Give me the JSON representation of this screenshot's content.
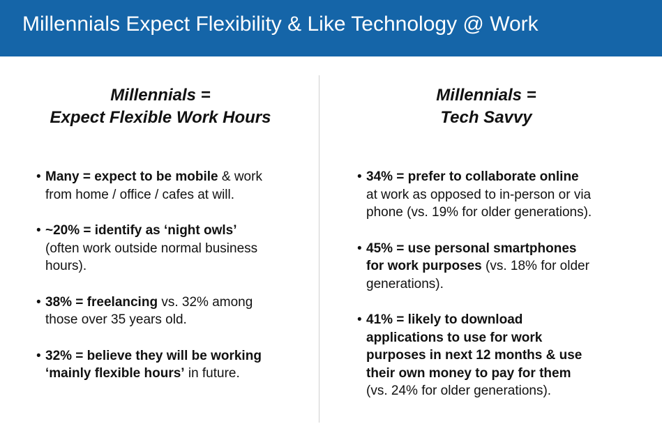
{
  "header": {
    "title": "Millennials Expect Flexibility & Like Technology @ Work"
  },
  "left": {
    "heading_line1": "Millennials =",
    "heading_line2": "Expect Flexible Work Hours",
    "bullets": [
      {
        "l1_bold": "Many = expect to be mobile",
        "l1_rest": " & work",
        "l2": "from home / office / cafes at will."
      },
      {
        "l1_bold": "~20% = identify as ‘night owls’",
        "l2": "(often work outside normal business",
        "l3": "hours)."
      },
      {
        "l1_bold": "38% = freelancing",
        "l1_rest": " vs. 32% among",
        "l2": "those over 35 years old."
      },
      {
        "l1_bold": "32% = believe they will be working",
        "l2_bold": "‘mainly flexible hours’",
        "l2_rest": " in future."
      }
    ]
  },
  "right": {
    "heading_line1": "Millennials =",
    "heading_line2": "Tech Savvy",
    "bullets": [
      {
        "l1_bold": "34% = prefer to collaborate online",
        "l2": "at work as opposed to in-person or via",
        "l3": "phone (vs. 19% for older generations)."
      },
      {
        "l1_bold": "45% = use personal smartphones",
        "l2_bold": "for work purposes",
        "l2_rest": " (vs. 18% for older",
        "l3": "generations)."
      },
      {
        "l1_bold": "41% = likely to download",
        "l2_bold": "applications to use for work",
        "l3_bold": "purposes in next 12 months & use",
        "l4_bold": "their own money to pay for them",
        "l5": "(vs. 24% for older generations)."
      }
    ]
  },
  "bullet_char": "•"
}
